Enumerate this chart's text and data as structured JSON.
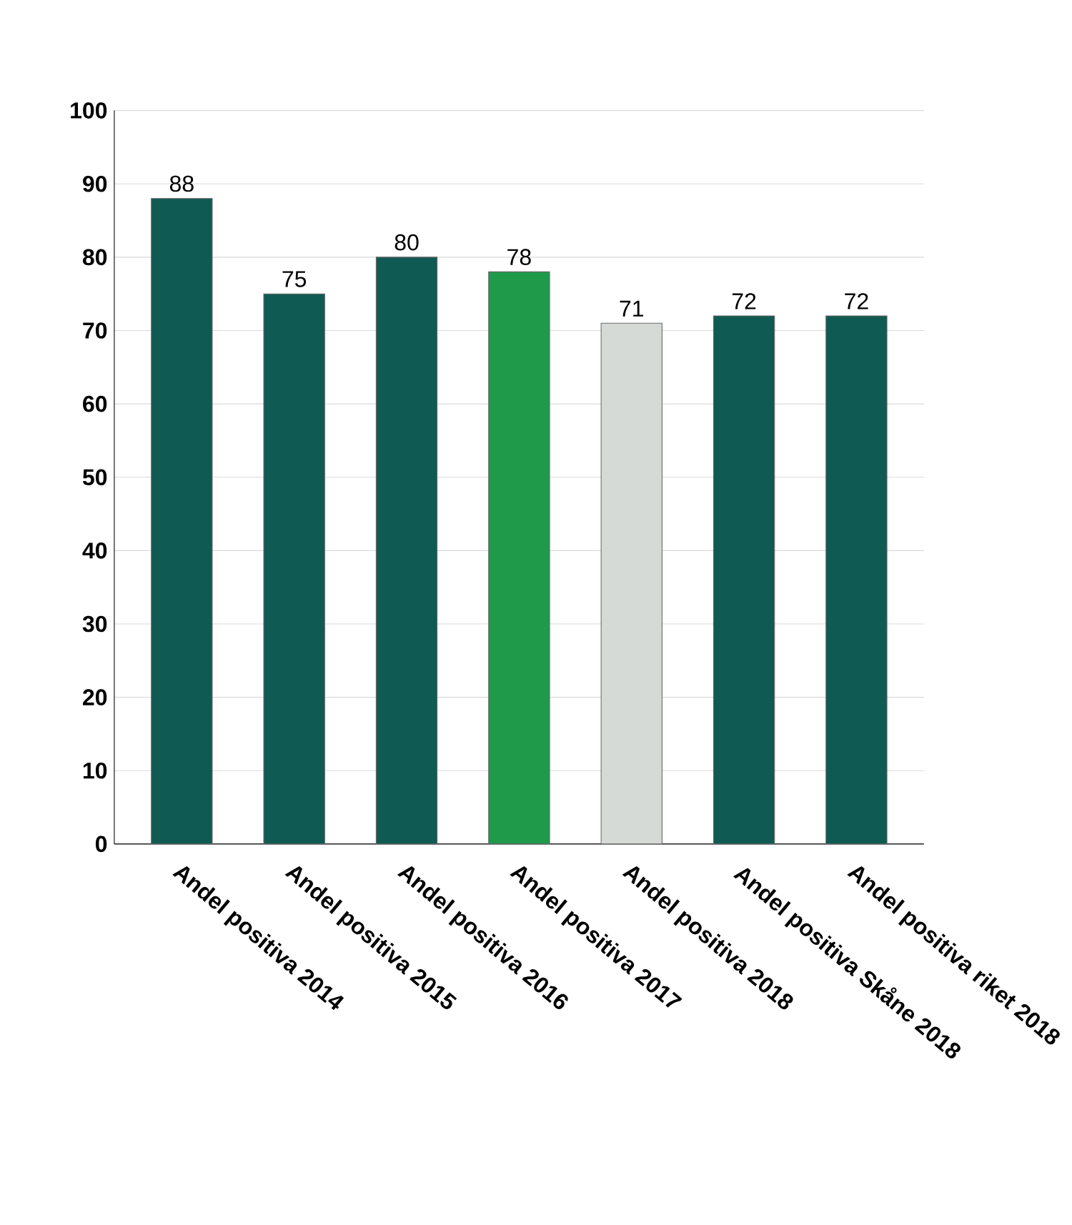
{
  "chart_data": {
    "type": "bar",
    "categories": [
      "Andel positiva 2014",
      "Andel positiva 2015",
      "Andel positiva 2016",
      "Andel positiva 2017",
      "Andel positiva 2018",
      "Andel positiva Skåne 2018",
      "Andel positiva riket 2018"
    ],
    "values": [
      88,
      75,
      80,
      78,
      71,
      72,
      72
    ],
    "colors": [
      "#0f5a52",
      "#0f5a52",
      "#0f5a52",
      "#1e9a4a",
      "#d6dad6",
      "#0f5a52",
      "#0f5a52"
    ],
    "ylim": [
      0,
      100
    ],
    "yticks": [
      0,
      10,
      20,
      30,
      40,
      50,
      60,
      70,
      80,
      90,
      100
    ],
    "grid": "y",
    "data_labels": true
  }
}
